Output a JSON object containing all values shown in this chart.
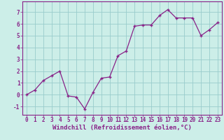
{
  "x_values": [
    0,
    1,
    2,
    3,
    4,
    5,
    6,
    7,
    8,
    9,
    10,
    11,
    12,
    13,
    14,
    15,
    16,
    17,
    18,
    19,
    20,
    21,
    22,
    23
  ],
  "y_values": [
    0,
    0.4,
    1.2,
    1.6,
    2.0,
    -0.1,
    -0.2,
    -1.2,
    0.2,
    1.4,
    1.5,
    3.3,
    3.7,
    5.8,
    5.9,
    5.9,
    6.7,
    7.2,
    6.5,
    6.5,
    6.5,
    5.0,
    5.5,
    6.1
  ],
  "line_color": "#882288",
  "marker_color": "#882288",
  "bg_color": "#cceee8",
  "grid_color": "#99cccc",
  "xlabel": "Windchill (Refroidissement éolien,°C)",
  "ylabel": "",
  "xlim": [
    -0.5,
    23.5
  ],
  "ylim": [
    -1.7,
    7.9
  ],
  "yticks": [
    -1,
    0,
    1,
    2,
    3,
    4,
    5,
    6,
    7
  ],
  "xticks": [
    0,
    1,
    2,
    3,
    4,
    5,
    6,
    7,
    8,
    9,
    10,
    11,
    12,
    13,
    14,
    15,
    16,
    17,
    18,
    19,
    20,
    21,
    22,
    23
  ],
  "tick_label_fontsize": 5.5,
  "xlabel_fontsize": 6.5,
  "marker_size": 2.5,
  "line_width": 0.9
}
